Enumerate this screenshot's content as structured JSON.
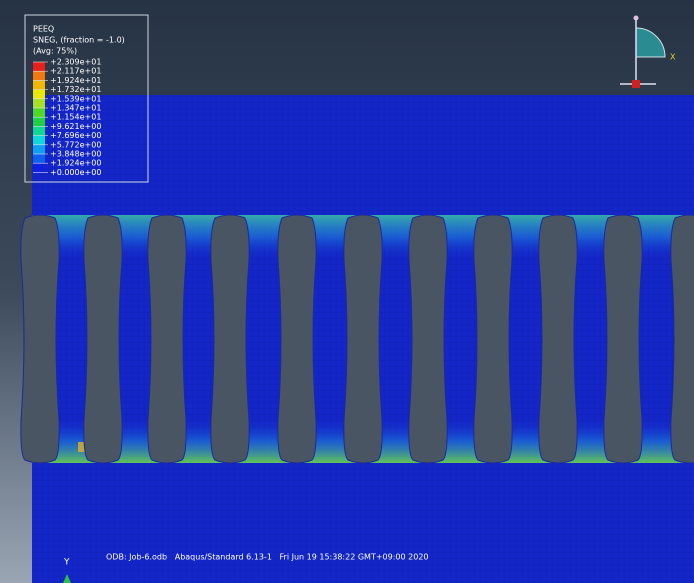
{
  "legend": {
    "title": "PEEQ",
    "subtitle": "SNEG, (fraction = -1.0)",
    "averaging": "(Avg: 75%)",
    "levels": [
      "+2.309e+01",
      "+2.117e+01",
      "+1.924e+01",
      "+1.732e+01",
      "+1.539e+01",
      "+1.347e+01",
      "+1.154e+01",
      "+9.621e+00",
      "+7.696e+00",
      "+5.772e+00",
      "+3.848e+00",
      "+1.924e+00",
      "+0.000e+00"
    ],
    "colors": [
      "#e8201a",
      "#f07a10",
      "#f0b800",
      "#e8e800",
      "#a8e020",
      "#50d820",
      "#20d040",
      "#10d890",
      "#10d8d8",
      "#10a0f0",
      "#1060f0",
      "#1020e0"
    ]
  },
  "triad": {
    "x_label": "X"
  },
  "viewport": {
    "axis_label": "Y",
    "status": "ODB: Job-6.odb   Abaqus/Standard 6.13-1   Fri Jun 19 15:38:22 GMT+09:00 2020"
  }
}
